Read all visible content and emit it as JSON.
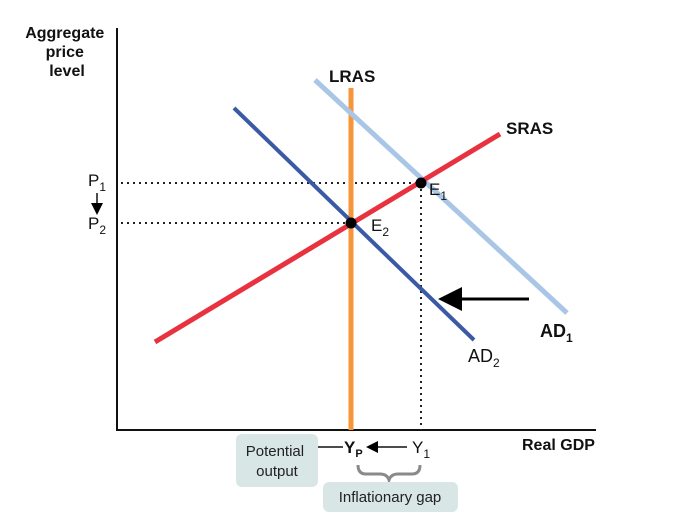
{
  "axes": {
    "y_label_lines": [
      "Aggregate",
      "price",
      "level"
    ],
    "x_label": "Real GDP"
  },
  "curves": {
    "lras": {
      "label": "LRAS",
      "color": "#f7953a"
    },
    "sras": {
      "label": "SRAS",
      "color": "#e8323f"
    },
    "ad1": {
      "label": "AD",
      "sub": "1",
      "color": "#a9c6e6"
    },
    "ad2": {
      "label": "AD",
      "sub": "2",
      "color": "#3a5aa6"
    }
  },
  "points": {
    "e1": {
      "label": "E",
      "sub": "1"
    },
    "e2": {
      "label": "E",
      "sub": "2"
    }
  },
  "price_levels": {
    "p1": {
      "label": "P",
      "sub": "1"
    },
    "p2": {
      "label": "P",
      "sub": "2"
    }
  },
  "output_levels": {
    "yp": {
      "label": "Y",
      "sub": "P"
    },
    "y1": {
      "label": "Y",
      "sub": "1"
    }
  },
  "notes": {
    "potential_output_lines": [
      "Potential",
      "output"
    ],
    "inflationary_gap": "Inflationary gap"
  },
  "colors": {
    "axis": "#111111",
    "arrow": "#000000",
    "note_box": "#d9e6e6"
  }
}
